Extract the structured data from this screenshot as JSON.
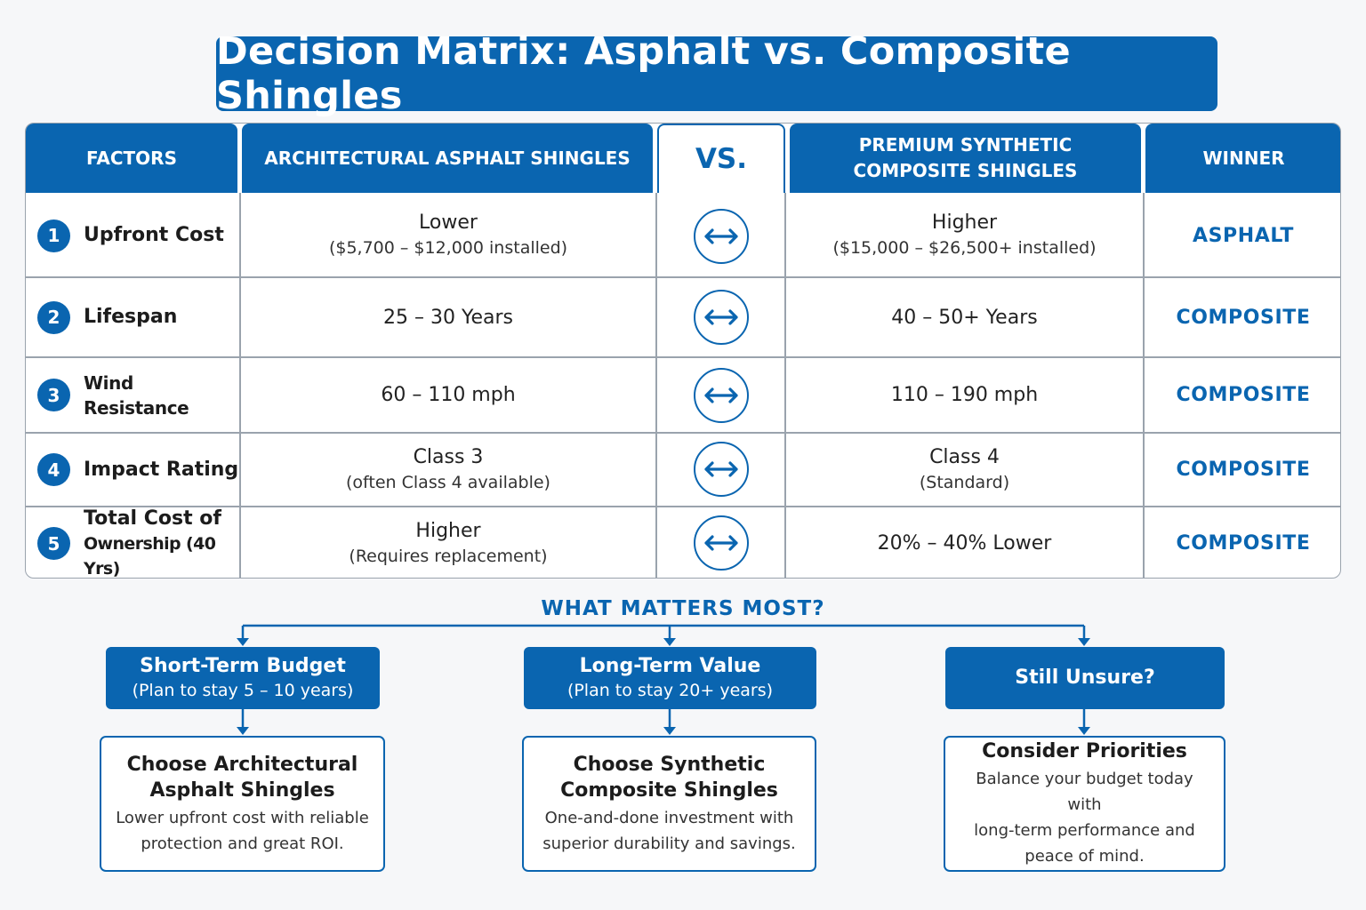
{
  "title": "Decision Matrix: Asphalt vs. Composite Shingles",
  "header": {
    "factors": "FACTORS",
    "asphalt": "ARCHITECTURAL ASPHALT SHINGLES",
    "vs": "VS.",
    "composite_line1": "PREMIUM SYNTHETIC",
    "composite_line2": "COMPOSITE SHINGLES",
    "winner": "WINNER"
  },
  "rows": [
    {
      "num": "1",
      "factor": "Upfront Cost",
      "factor_line2": "",
      "asphalt_main": "Lower",
      "asphalt_sub": "($5,700 – $12,000 installed)",
      "composite_main": "Higher",
      "composite_sub": "($15,000 – $26,500+ installed)",
      "winner": "ASPHALT"
    },
    {
      "num": "2",
      "factor": "Lifespan",
      "factor_line2": "",
      "asphalt_main": "25 – 30 Years",
      "asphalt_sub": "",
      "composite_main": "40 – 50+ Years",
      "composite_sub": "",
      "winner": "COMPOSITE"
    },
    {
      "num": "3",
      "factor": "Wind Resistance",
      "factor_line2": "",
      "asphalt_main": "60 – 110 mph",
      "asphalt_sub": "",
      "composite_main": "110 – 190 mph",
      "composite_sub": "",
      "winner": "COMPOSITE"
    },
    {
      "num": "4",
      "factor": "Impact Rating",
      "factor_line2": "",
      "asphalt_main": "Class 3",
      "asphalt_sub": "(often Class 4 available)",
      "composite_main": "Class 4",
      "composite_sub": "(Standard)",
      "winner": "COMPOSITE"
    },
    {
      "num": "5",
      "factor": "Total Cost of",
      "factor_line2": "Ownership (40 Yrs)",
      "asphalt_main": "Higher",
      "asphalt_sub": "(Requires replacement)",
      "composite_main": "20% – 40% Lower",
      "composite_sub": "",
      "winner": "COMPOSITE"
    }
  ],
  "question": "WHAT MATTERS MOST?",
  "paths": [
    {
      "q_title": "Short-Term Budget",
      "q_sub": "(Plan to stay 5 – 10 years)",
      "a_title_line1": "Choose Architectural",
      "a_title_line2": "Asphalt Shingles",
      "a_body_line1": "Lower upfront cost with reliable",
      "a_body_line2": "protection and great ROI.",
      "a_body_line3": ""
    },
    {
      "q_title": "Long-Term Value",
      "q_sub": "(Plan to stay 20+ years)",
      "a_title_line1": "Choose Synthetic",
      "a_title_line2": "Composite Shingles",
      "a_body_line1": "One-and-done investment with",
      "a_body_line2": "superior durability and savings.",
      "a_body_line3": ""
    },
    {
      "q_title": "Still Unsure?",
      "q_sub": "",
      "a_title_line1": "Consider Priorities",
      "a_title_line2": "",
      "a_body_line1": "Balance your budget today with",
      "a_body_line2": "long-term performance and",
      "a_body_line3": "peace of mind."
    }
  ],
  "colors": {
    "brand_blue": "#0a65b0",
    "border_gray": "#9aa3ad"
  },
  "icons": {
    "compare": "double-arrow-icon"
  }
}
